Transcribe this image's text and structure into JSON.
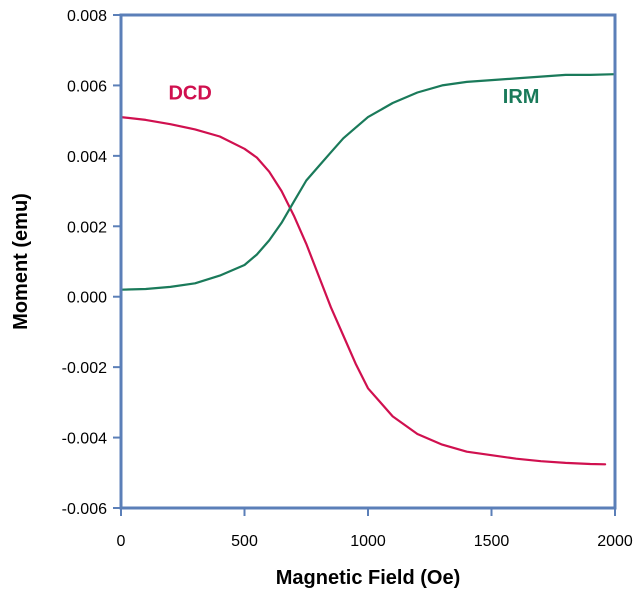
{
  "chart_data": {
    "type": "line",
    "title": "",
    "xlabel": "Magnetic Field (Oe)",
    "ylabel": "Moment (emu)",
    "xlim": [
      0,
      2000
    ],
    "ylim": [
      -0.006,
      0.008
    ],
    "xticks": [
      0,
      500,
      1000,
      1500,
      2000
    ],
    "xtick_labels": [
      "0",
      "500",
      "1000",
      "1500",
      "2000"
    ],
    "yticks": [
      -0.006,
      -0.004,
      -0.002,
      0.0,
      0.002,
      0.004,
      0.006,
      0.008
    ],
    "ytick_labels": [
      "-0.006",
      "-0.004",
      "-0.002",
      "0.000",
      "0.002",
      "0.004",
      "0.006",
      "0.008"
    ],
    "grid": false,
    "legend": "none",
    "series": [
      {
        "name": "DCD",
        "color": "#d0104f",
        "label_at": [
          280,
          0.0058
        ],
        "x": [
          0,
          100,
          200,
          300,
          400,
          500,
          550,
          600,
          650,
          700,
          750,
          800,
          850,
          900,
          950,
          1000,
          1100,
          1200,
          1300,
          1400,
          1500,
          1600,
          1700,
          1800,
          1900,
          1960
        ],
        "y": [
          0.0051,
          0.00502,
          0.0049,
          0.00475,
          0.00455,
          0.0042,
          0.00395,
          0.00355,
          0.003,
          0.0023,
          0.0015,
          0.0006,
          -0.0003,
          -0.0011,
          -0.0019,
          -0.0026,
          -0.0034,
          -0.0039,
          -0.0042,
          -0.0044,
          -0.0045,
          -0.0046,
          -0.00467,
          -0.00472,
          -0.00475,
          -0.00476
        ]
      },
      {
        "name": "IRM",
        "color": "#1a7a5a",
        "label_at": [
          1620,
          0.0057
        ],
        "x": [
          0,
          100,
          200,
          300,
          400,
          500,
          550,
          600,
          650,
          700,
          750,
          800,
          850,
          900,
          950,
          1000,
          1100,
          1200,
          1300,
          1400,
          1500,
          1600,
          1700,
          1800,
          1900,
          2000
        ],
        "y": [
          0.0002,
          0.00022,
          0.00028,
          0.00038,
          0.0006,
          0.0009,
          0.0012,
          0.0016,
          0.0021,
          0.0027,
          0.0033,
          0.0037,
          0.0041,
          0.0045,
          0.0048,
          0.0051,
          0.0055,
          0.0058,
          0.006,
          0.0061,
          0.00615,
          0.0062,
          0.00625,
          0.0063,
          0.0063,
          0.00632
        ]
      }
    ]
  }
}
